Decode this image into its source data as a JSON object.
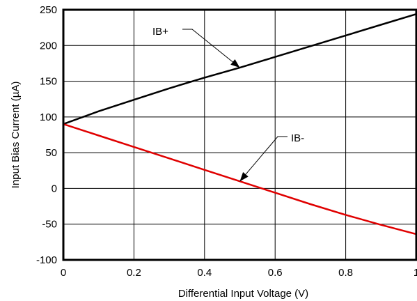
{
  "chart_data": {
    "type": "line",
    "title": "",
    "xlabel": "Differential Input Voltage (V)",
    "ylabel": "Input Bias Current (µA)",
    "xlim": [
      0,
      1
    ],
    "ylim": [
      -100,
      250
    ],
    "x_ticks": [
      0,
      0.2,
      0.4,
      0.6,
      0.8,
      1
    ],
    "x_tick_labels": [
      "0",
      "0.2",
      "0.4",
      "0.6",
      "0.8",
      "1"
    ],
    "y_ticks": [
      -100,
      -50,
      0,
      50,
      100,
      150,
      200,
      250
    ],
    "y_tick_labels": [
      "-100",
      "-50",
      "0",
      "50",
      "100",
      "150",
      "200",
      "250"
    ],
    "grid": true,
    "legend": "none",
    "series": [
      {
        "name": "IB+",
        "color": "#000000",
        "x": [
          0,
          0.1,
          0.2,
          0.3,
          0.4,
          0.5,
          0.6,
          0.7,
          0.8,
          0.9,
          1.0
        ],
        "y": [
          90,
          108,
          124,
          140,
          155,
          169,
          184,
          199,
          214,
          229,
          244
        ],
        "annotation": {
          "text": "IB+",
          "point": [
            0.5,
            169
          ]
        }
      },
      {
        "name": "IB-",
        "color": "#e00000",
        "x": [
          0,
          0.1,
          0.2,
          0.3,
          0.4,
          0.5,
          0.6,
          0.7,
          0.8,
          0.9,
          1.0
        ],
        "y": [
          90,
          74,
          58,
          42,
          26,
          10,
          -6,
          -22,
          -37,
          -51,
          -64
        ],
        "annotation": {
          "text": "IB-",
          "point": [
            0.5,
            10
          ]
        }
      }
    ]
  }
}
